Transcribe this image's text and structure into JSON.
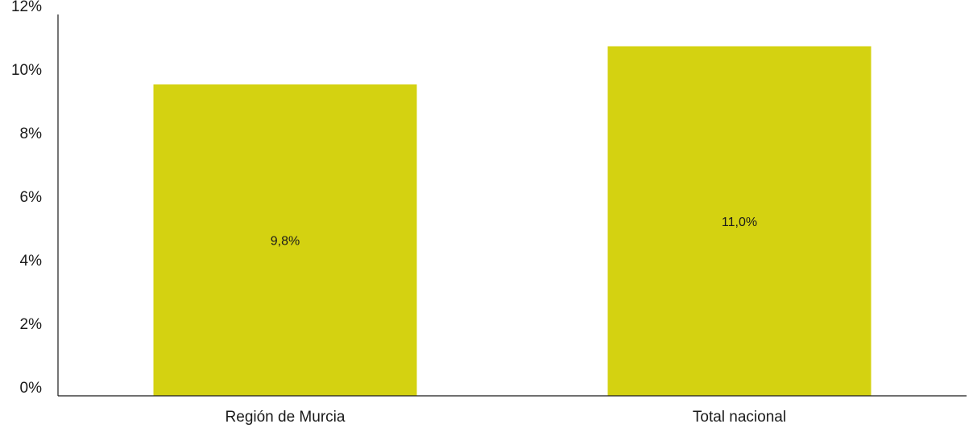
{
  "chart_data": {
    "type": "bar",
    "categories": [
      "Región de Murcia",
      "Total nacional"
    ],
    "values": [
      9.8,
      11.0
    ],
    "value_labels": [
      "9,8%",
      "11,0%"
    ],
    "ylim": [
      0,
      12
    ],
    "yticks": [
      0,
      2,
      4,
      6,
      8,
      10,
      12
    ],
    "ytick_labels": [
      "0%",
      "2%",
      "4%",
      "6%",
      "8%",
      "10%",
      "12%"
    ],
    "title": "",
    "xlabel": "",
    "ylabel": "",
    "grid": false,
    "legend": "none",
    "bar_color": "#d4d211"
  }
}
